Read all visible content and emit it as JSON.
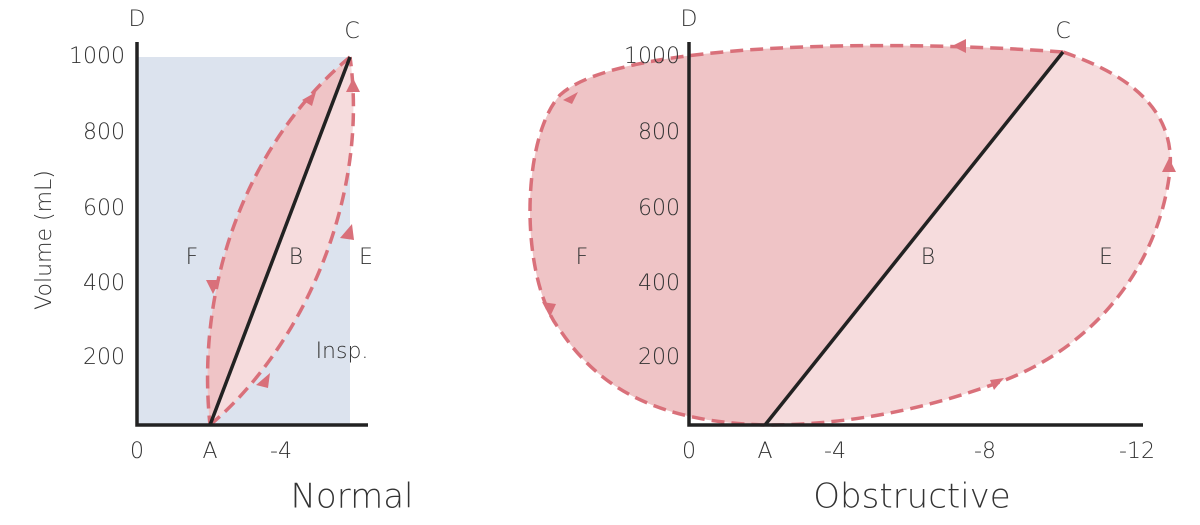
{
  "y_axis_label": "Volume (mL)",
  "panels": [
    {
      "title": "Normal",
      "x_ticks": [
        "0",
        "A",
        "-4"
      ],
      "y_ticks": [
        "200",
        "400",
        "600",
        "800",
        "1000"
      ],
      "labels": {
        "top_left": "D",
        "top_right": "C",
        "left": "F",
        "middle": "B",
        "right": "E"
      },
      "note": "Insp."
    },
    {
      "title": "Obstructive",
      "x_ticks": [
        "0",
        "A",
        "-4",
        "-8",
        "-12"
      ],
      "y_ticks": [
        "200",
        "400",
        "600",
        "800",
        "1000"
      ],
      "labels": {
        "top_left": "D",
        "top_right": "C",
        "left": "F",
        "middle": "B",
        "right": "E"
      }
    }
  ]
}
